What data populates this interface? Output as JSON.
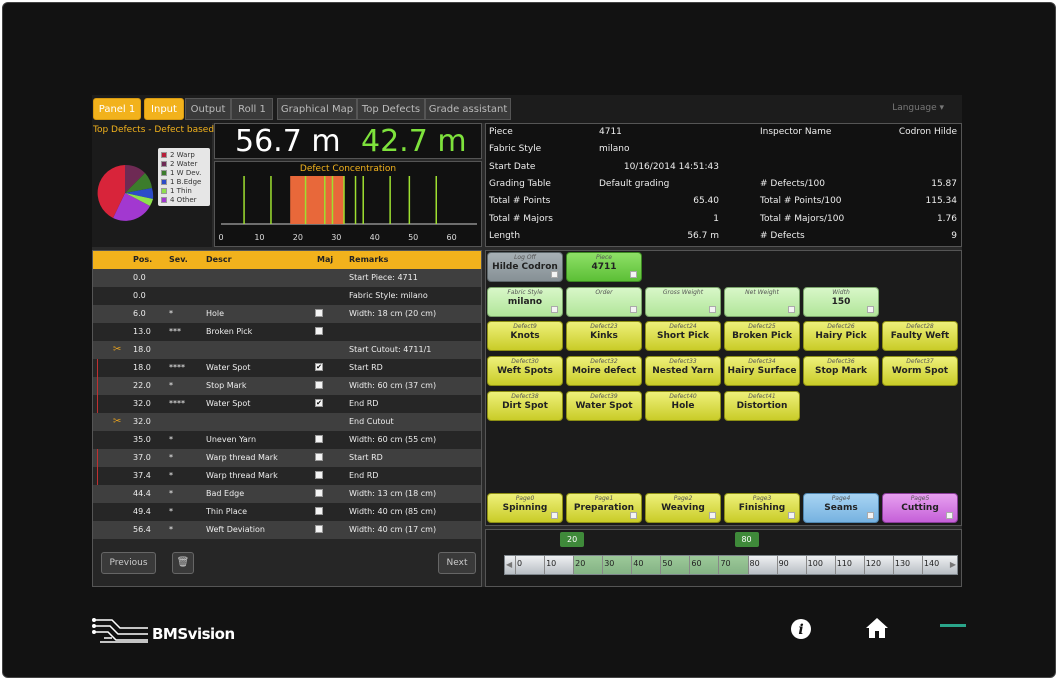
{
  "tabs": [
    {
      "label": "Panel 1",
      "active": true
    },
    {
      "label": "Input",
      "active": true
    },
    {
      "label": "Output",
      "active": false
    },
    {
      "label": "Roll 1",
      "active": false
    },
    {
      "label": "Graphical Map",
      "active": false
    },
    {
      "label": "Top Defects",
      "active": false
    },
    {
      "label": "Grade assistant",
      "active": false
    }
  ],
  "language_label": "Language",
  "top_defects": {
    "title": "Top Defects - Defect based",
    "legend": [
      {
        "label": "2 Warp",
        "color": "#b8203a"
      },
      {
        "label": "2 Water",
        "color": "#6e2a54"
      },
      {
        "label": "1 W Dev.",
        "color": "#3c7c2c"
      },
      {
        "label": "1 B.Edge",
        "color": "#2b4cc8"
      },
      {
        "label": "1 Thin",
        "color": "#8ee04c"
      },
      {
        "label": "4 Other",
        "color": "#a238d0"
      }
    ]
  },
  "lengths": {
    "total": "56.7 m",
    "good": "42.7 m"
  },
  "concentration": {
    "title": "Defect Concentration",
    "x_ticks": [
      "0",
      "10",
      "20",
      "30",
      "40",
      "50",
      "60"
    ],
    "lines": [
      6,
      13,
      22,
      27,
      29,
      32,
      35,
      37,
      44,
      49,
      56
    ],
    "block": [
      18,
      32
    ]
  },
  "piece_info": {
    "left": [
      {
        "label": "Piece",
        "value": "4711"
      },
      {
        "label": "Fabric Style",
        "value": "milano"
      },
      {
        "label": "Start Date",
        "value": "10/16/2014 14:51:43"
      },
      {
        "label": "Grading Table",
        "value": "Default grading"
      },
      {
        "label": "Total # Points",
        "value": "65.40"
      },
      {
        "label": "Total # Majors",
        "value": "1"
      },
      {
        "label": "Length",
        "value": "56.7 m"
      }
    ],
    "right": [
      {
        "label": "Inspector Name",
        "value": "Codron Hilde"
      },
      {
        "label": "# Defects/100",
        "value": "15.87"
      },
      {
        "label": "Total # Points/100",
        "value": "115.34"
      },
      {
        "label": "Total # Majors/100",
        "value": "1.76"
      },
      {
        "label": "# Defects",
        "value": "9"
      }
    ]
  },
  "table": {
    "headers": {
      "pos": "Pos.",
      "sev": "Sev.",
      "descr": "Descr",
      "maj": "Maj",
      "remarks": "Remarks"
    },
    "rows": [
      {
        "pos": "0.0",
        "sev": "",
        "descr": "",
        "maj": "",
        "remarks": "Start Piece: 4711",
        "icon": ""
      },
      {
        "pos": "0.0",
        "sev": "",
        "descr": "",
        "maj": "",
        "remarks": "Fabric Style: milano",
        "icon": ""
      },
      {
        "pos": "6.0",
        "sev": "*",
        "descr": "Hole",
        "maj": "off",
        "remarks": "Width: 18 cm (20 cm)",
        "icon": ""
      },
      {
        "pos": "13.0",
        "sev": "***",
        "descr": "Broken Pick",
        "maj": "off",
        "remarks": "",
        "icon": ""
      },
      {
        "pos": "18.0",
        "sev": "",
        "descr": "",
        "maj": "",
        "remarks": "Start Cutout: 4711/1",
        "icon": "scissors"
      },
      {
        "pos": "18.0",
        "sev": "****",
        "descr": "Water Spot",
        "maj": "on",
        "remarks": "Start RD",
        "icon": ""
      },
      {
        "pos": "22.0",
        "sev": "*",
        "descr": "Stop Mark",
        "maj": "off",
        "remarks": "Width: 60 cm (37 cm)",
        "icon": ""
      },
      {
        "pos": "32.0",
        "sev": "****",
        "descr": "Water Spot",
        "maj": "on",
        "remarks": "End RD",
        "icon": ""
      },
      {
        "pos": "32.0",
        "sev": "",
        "descr": "",
        "maj": "",
        "remarks": "End Cutout",
        "icon": "scissors"
      },
      {
        "pos": "35.0",
        "sev": "*",
        "descr": "Uneven Yarn",
        "maj": "off",
        "remarks": "Width: 60 cm (55 cm)",
        "icon": ""
      },
      {
        "pos": "37.0",
        "sev": "*",
        "descr": "Warp thread Mark",
        "maj": "off",
        "remarks": "Start RD",
        "icon": ""
      },
      {
        "pos": "37.4",
        "sev": "*",
        "descr": "Warp thread Mark",
        "maj": "off",
        "remarks": "End RD",
        "icon": ""
      },
      {
        "pos": "44.4",
        "sev": "*",
        "descr": "Bad Edge",
        "maj": "off",
        "remarks": "Width: 13 cm (18 cm)",
        "icon": ""
      },
      {
        "pos": "49.4",
        "sev": "*",
        "descr": "Thin Place",
        "maj": "off",
        "remarks": "Width: 40 cm (85 cm)",
        "icon": ""
      },
      {
        "pos": "56.4",
        "sev": "*",
        "descr": "Weft Deviation",
        "maj": "off",
        "remarks": "Width: 40 cm (17 cm)",
        "icon": ""
      }
    ],
    "previous_label": "Previous",
    "next_label": "Next"
  },
  "info_buttons": [
    {
      "sub": "Log Off",
      "label": "Hilde Codron",
      "color": "grey"
    },
    {
      "sub": "Piece",
      "label": "4711",
      "color": "bgreen"
    },
    {
      "sub": "Fabric Style",
      "label": "milano",
      "color": "green"
    },
    {
      "sub": "Order",
      "label": "",
      "color": "green"
    },
    {
      "sub": "Gross Weight",
      "label": "",
      "color": "green"
    },
    {
      "sub": "Net Weight",
      "label": "",
      "color": "green"
    },
    {
      "sub": "Width",
      "label": "150",
      "color": "green"
    }
  ],
  "defect_buttons": [
    {
      "sub": "Defect9",
      "label": "Knots"
    },
    {
      "sub": "Defect23",
      "label": "Kinks"
    },
    {
      "sub": "Defect24",
      "label": "Short Pick"
    },
    {
      "sub": "Defect25",
      "label": "Broken Pick"
    },
    {
      "sub": "Defect26",
      "label": "Hairy Pick"
    },
    {
      "sub": "Defect28",
      "label": "Faulty Weft"
    },
    {
      "sub": "Defect30",
      "label": "Weft Spots"
    },
    {
      "sub": "Defect32",
      "label": "Moire defect"
    },
    {
      "sub": "Defect33",
      "label": "Nested Yarn"
    },
    {
      "sub": "Defect34",
      "label": "Hairy Surface"
    },
    {
      "sub": "Defect36",
      "label": "Stop Mark"
    },
    {
      "sub": "Defect37",
      "label": "Worm Spot"
    },
    {
      "sub": "Defect38",
      "label": "Dirt Spot"
    },
    {
      "sub": "Defect39",
      "label": "Water Spot"
    },
    {
      "sub": "Defect40",
      "label": "Hole"
    },
    {
      "sub": "Defect41",
      "label": "Distortion"
    }
  ],
  "page_buttons": [
    {
      "sub": "Page0",
      "label": "Spinning",
      "color": "yellow"
    },
    {
      "sub": "Page1",
      "label": "Preparation",
      "color": "yellow"
    },
    {
      "sub": "Page2",
      "label": "Weaving",
      "color": "yellow"
    },
    {
      "sub": "Page3",
      "label": "Finishing",
      "color": "yellow"
    },
    {
      "sub": "Page4",
      "label": "Seams",
      "color": "blue"
    },
    {
      "sub": "Page5",
      "label": "Cutting",
      "color": "purple"
    }
  ],
  "ruler": {
    "ticks": [
      "0",
      "10",
      "20",
      "30",
      "40",
      "50",
      "60",
      "70",
      "80",
      "90",
      "100",
      "110",
      "120",
      "130",
      "140"
    ],
    "range": [
      0,
      150
    ],
    "selection": [
      20,
      80
    ],
    "marker_low": "20",
    "marker_high": "80"
  },
  "brand": "BMSvision"
}
